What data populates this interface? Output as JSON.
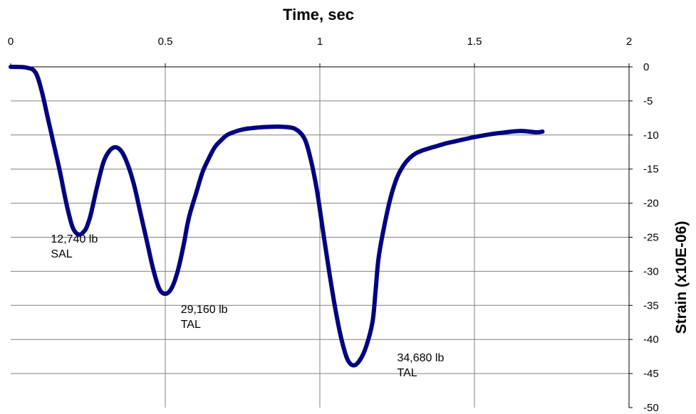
{
  "chart_data": {
    "type": "line",
    "title": "Time, sec",
    "xlabel": "Time, sec",
    "ylabel": "Strain (x10E-06)",
    "xlim": [
      0,
      2
    ],
    "ylim": [
      -50,
      0
    ],
    "x_ticks": [
      0,
      0.5,
      1,
      1.5,
      2
    ],
    "x_tick_labels": [
      "0",
      "0.5",
      "1",
      "1.5",
      "2"
    ],
    "y_ticks": [
      0,
      -5,
      -10,
      -15,
      -20,
      -25,
      -30,
      -35,
      -40,
      -45,
      -50
    ],
    "y_tick_labels": [
      "0",
      "-5",
      "-10",
      "-15",
      "-20",
      "-25",
      "-30",
      "-35",
      "-40",
      "-45",
      "-50"
    ],
    "x_axis_position": "top",
    "y_axis_position": "right",
    "grid": true,
    "series_color": "#000080",
    "series": [
      {
        "x": [
          0.0,
          0.05,
          0.08,
          0.1,
          0.12,
          0.14,
          0.16,
          0.18,
          0.2,
          0.22,
          0.24,
          0.25,
          0.26,
          0.28,
          0.3,
          0.32,
          0.34,
          0.36,
          0.38,
          0.4,
          0.42,
          0.44,
          0.46,
          0.48,
          0.5,
          0.52,
          0.54,
          0.56,
          0.57,
          0.58,
          0.6,
          0.62,
          0.64,
          0.66,
          0.68,
          0.7,
          0.72,
          0.74,
          0.76,
          0.78,
          0.8,
          0.84,
          0.88,
          0.92,
          0.95,
          0.97,
          0.99,
          1.01,
          1.03,
          1.05,
          1.07,
          1.09,
          1.11,
          1.13,
          1.15,
          1.17,
          1.18,
          1.19,
          1.21,
          1.23,
          1.25,
          1.27,
          1.29,
          1.31,
          1.33,
          1.35,
          1.38,
          1.41,
          1.44,
          1.47,
          1.5,
          1.55,
          1.6,
          1.65,
          1.7,
          1.72
        ],
        "y": [
          0,
          -0.1,
          -0.8,
          -3.5,
          -7.5,
          -11.5,
          -15.5,
          -20,
          -23.5,
          -24.6,
          -24,
          -23,
          -21.5,
          -17.5,
          -14,
          -12.3,
          -11.8,
          -12.5,
          -14.5,
          -17.5,
          -21.5,
          -25.5,
          -29.5,
          -32.5,
          -33.3,
          -32.5,
          -30,
          -26,
          -23.5,
          -21.5,
          -18.5,
          -15.5,
          -13.5,
          -11.8,
          -10.8,
          -10,
          -9.6,
          -9.3,
          -9.1,
          -9.0,
          -8.9,
          -8.8,
          -8.8,
          -9.1,
          -10.5,
          -13.5,
          -18,
          -24,
          -30,
          -35.5,
          -40,
          -43,
          -43.8,
          -43,
          -41,
          -37.5,
          -33,
          -28,
          -23,
          -19,
          -16.2,
          -14.5,
          -13.4,
          -12.7,
          -12.3,
          -12.0,
          -11.6,
          -11.2,
          -10.9,
          -10.6,
          -10.3,
          -9.9,
          -9.6,
          -9.4,
          -9.6,
          -9.5
        ]
      }
    ],
    "annotations": [
      {
        "lines": [
          "12,740 lb",
          "SAL"
        ],
        "x": 0.13,
        "y": -25.8
      },
      {
        "lines": [
          "29,160 lb",
          "TAL"
        ],
        "x": 0.55,
        "y": -36.1
      },
      {
        "lines": [
          "34,680 lb",
          "TAL"
        ],
        "x": 1.25,
        "y": -43.2
      }
    ]
  }
}
